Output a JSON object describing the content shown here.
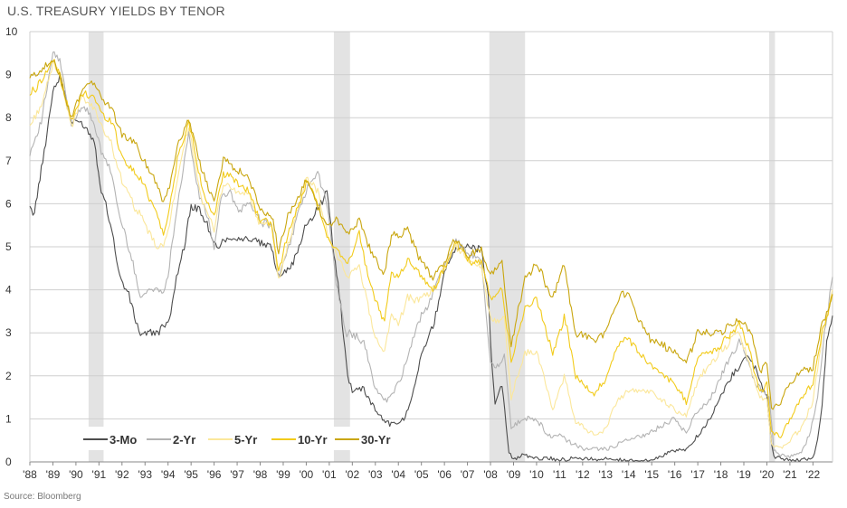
{
  "chart_data": {
    "type": "line",
    "title": "U.S. TREASURY YIELDS BY TENOR",
    "source": "Source: Bloomberg",
    "xlabel": "",
    "ylabel": "",
    "ylim": [
      0,
      10
    ],
    "yticks": [
      0,
      1,
      2,
      3,
      4,
      5,
      6,
      7,
      8,
      9,
      10
    ],
    "xlim": [
      1988.0,
      2022.85
    ],
    "xticks": [
      {
        "value": 1988,
        "label": "'88"
      },
      {
        "value": 1989,
        "label": "'89"
      },
      {
        "value": 1990,
        "label": "'90"
      },
      {
        "value": 1991,
        "label": "'91"
      },
      {
        "value": 1992,
        "label": "'92"
      },
      {
        "value": 1993,
        "label": "'93"
      },
      {
        "value": 1994,
        "label": "'94"
      },
      {
        "value": 1995,
        "label": "'95"
      },
      {
        "value": 1996,
        "label": "'96"
      },
      {
        "value": 1997,
        "label": "'97"
      },
      {
        "value": 1998,
        "label": "'98"
      },
      {
        "value": 1999,
        "label": "'99"
      },
      {
        "value": 2000,
        "label": "'00"
      },
      {
        "value": 2001,
        "label": "'01"
      },
      {
        "value": 2002,
        "label": "'02"
      },
      {
        "value": 2003,
        "label": "'03"
      },
      {
        "value": 2004,
        "label": "'04"
      },
      {
        "value": 2005,
        "label": "'05"
      },
      {
        "value": 2006,
        "label": "'06"
      },
      {
        "value": 2007,
        "label": "'07"
      },
      {
        "value": 2008,
        "label": "'08"
      },
      {
        "value": 2009,
        "label": "'09"
      },
      {
        "value": 2010,
        "label": "'10"
      },
      {
        "value": 2011,
        "label": "'11"
      },
      {
        "value": 2012,
        "label": "'12"
      },
      {
        "value": 2013,
        "label": "'13"
      },
      {
        "value": 2014,
        "label": "'14"
      },
      {
        "value": 2015,
        "label": "'15"
      },
      {
        "value": 2016,
        "label": "'16"
      },
      {
        "value": 2017,
        "label": "'17"
      },
      {
        "value": 2018,
        "label": "'18"
      },
      {
        "value": 2019,
        "label": "'19"
      },
      {
        "value": 2020,
        "label": "'20"
      },
      {
        "value": 2021,
        "label": "'21"
      },
      {
        "value": 2022,
        "label": "'22"
      }
    ],
    "recessions": [
      [
        1990.55,
        1991.2
      ],
      [
        2001.2,
        2001.9
      ],
      [
        2007.95,
        2009.5
      ],
      [
        2020.1,
        2020.35
      ]
    ],
    "grid": true,
    "legend": "bottom-left",
    "series": [
      {
        "name": "3-Mo",
        "color": "#4d4d4d",
        "x": [
          1988.0,
          1988.2,
          1988.5,
          1989.0,
          1989.3,
          1989.8,
          1990.3,
          1990.8,
          1991.1,
          1991.5,
          1991.9,
          1992.3,
          1992.6,
          1992.8,
          1993.0,
          1993.3,
          1993.8,
          1994.0,
          1994.3,
          1994.7,
          1995.0,
          1995.3,
          1995.7,
          1996.0,
          1996.3,
          1996.7,
          1997.0,
          1997.5,
          1998.0,
          1998.5,
          1998.8,
          1999.0,
          1999.5,
          2000.0,
          2000.5,
          2000.9,
          2001.2,
          2001.5,
          2001.8,
          2002.0,
          2002.5,
          2003.0,
          2003.5,
          2004.0,
          2004.3,
          2004.6,
          2005.0,
          2005.5,
          2006.0,
          2006.5,
          2007.0,
          2007.6,
          2007.9,
          2008.0,
          2008.2,
          2008.5,
          2008.8,
          2009.0,
          2009.5,
          2010.0,
          2011.0,
          2012.0,
          2013.0,
          2014.0,
          2015.0,
          2015.9,
          2016.5,
          2017.0,
          2017.5,
          2018.0,
          2018.5,
          2019.0,
          2019.3,
          2019.7,
          2020.0,
          2020.2,
          2020.3,
          2020.5,
          2021.0,
          2021.5,
          2022.0,
          2022.2,
          2022.4,
          2022.6,
          2022.85
        ],
        "values": [
          5.9,
          5.8,
          6.8,
          8.6,
          9.0,
          7.9,
          7.9,
          7.5,
          6.3,
          5.6,
          4.3,
          3.9,
          3.3,
          3.0,
          3.0,
          3.0,
          3.1,
          3.2,
          4.1,
          5.0,
          5.9,
          5.9,
          5.5,
          5.0,
          5.1,
          5.2,
          5.2,
          5.2,
          5.1,
          5.0,
          4.3,
          4.4,
          4.7,
          5.5,
          5.9,
          6.3,
          4.9,
          3.6,
          2.0,
          1.7,
          1.7,
          1.2,
          0.9,
          0.9,
          1.0,
          1.6,
          2.5,
          3.1,
          4.4,
          5.0,
          5.0,
          4.9,
          3.9,
          2.8,
          1.3,
          1.8,
          0.2,
          0.1,
          0.15,
          0.1,
          0.05,
          0.08,
          0.05,
          0.03,
          0.02,
          0.25,
          0.3,
          0.6,
          1.0,
          1.5,
          2.0,
          2.4,
          2.4,
          1.9,
          1.5,
          0.4,
          0.1,
          0.1,
          0.05,
          0.05,
          0.1,
          0.5,
          1.3,
          2.8,
          3.4
        ]
      },
      {
        "name": "2-Yr",
        "color": "#b3b3b3",
        "x": [
          1988.0,
          1988.5,
          1989.0,
          1989.3,
          1989.8,
          1990.3,
          1990.8,
          1991.1,
          1991.5,
          1991.9,
          1992.3,
          1992.6,
          1992.8,
          1993.3,
          1993.8,
          1994.0,
          1994.3,
          1994.9,
          1995.3,
          1995.7,
          1996.0,
          1996.3,
          1996.7,
          1997.0,
          1997.5,
          1998.0,
          1998.5,
          1998.8,
          1999.0,
          1999.5,
          2000.0,
          2000.5,
          2000.9,
          2001.3,
          2001.7,
          2002.0,
          2002.5,
          2003.0,
          2003.5,
          2004.0,
          2004.5,
          2005.0,
          2005.5,
          2006.0,
          2006.5,
          2007.0,
          2007.6,
          2008.0,
          2008.3,
          2008.6,
          2008.9,
          2009.5,
          2010.0,
          2010.5,
          2011.0,
          2012.0,
          2013.0,
          2014.0,
          2015.0,
          2016.0,
          2016.5,
          2017.0,
          2017.5,
          2018.0,
          2018.8,
          2019.0,
          2019.5,
          2019.9,
          2020.1,
          2020.3,
          2020.6,
          2021.0,
          2021.5,
          2021.9,
          2022.2,
          2022.5,
          2022.85
        ],
        "values": [
          7.2,
          7.9,
          9.5,
          9.3,
          7.8,
          8.3,
          7.9,
          7.2,
          6.8,
          5.7,
          5.0,
          4.3,
          3.9,
          4.0,
          4.0,
          4.3,
          5.6,
          7.6,
          6.3,
          5.7,
          5.0,
          6.1,
          6.3,
          5.8,
          6.0,
          5.6,
          5.5,
          4.3,
          4.6,
          5.5,
          6.3,
          6.7,
          6.0,
          4.2,
          3.0,
          3.0,
          2.8,
          1.7,
          1.4,
          1.8,
          2.6,
          3.4,
          3.9,
          4.6,
          5.1,
          4.9,
          4.7,
          2.3,
          2.2,
          2.5,
          0.8,
          1.0,
          1.0,
          0.6,
          0.6,
          0.3,
          0.3,
          0.5,
          0.7,
          1.0,
          0.7,
          1.2,
          1.4,
          2.0,
          2.8,
          2.6,
          1.8,
          1.6,
          1.5,
          0.3,
          0.15,
          0.12,
          0.2,
          0.7,
          1.5,
          3.0,
          4.3
        ]
      },
      {
        "name": "5-Yr",
        "color": "#fbe79b",
        "x": [
          1988.0,
          1988.5,
          1989.0,
          1989.3,
          1989.8,
          1990.3,
          1990.8,
          1991.2,
          1991.6,
          1992.0,
          1992.5,
          1993.0,
          1993.5,
          1993.8,
          1994.0,
          1994.4,
          1994.9,
          1995.5,
          1996.0,
          1996.4,
          1997.0,
          1997.5,
          1998.0,
          1998.5,
          1998.8,
          1999.2,
          1999.7,
          2000.0,
          2000.5,
          2000.9,
          2001.3,
          2001.8,
          2002.3,
          2002.8,
          2003.0,
          2003.4,
          2003.7,
          2004.0,
          2004.4,
          2005.0,
          2005.5,
          2006.0,
          2006.5,
          2007.0,
          2007.6,
          2008.0,
          2008.3,
          2008.6,
          2008.9,
          2009.5,
          2010.0,
          2010.7,
          2011.2,
          2011.7,
          2012.3,
          2012.6,
          2013.0,
          2013.5,
          2014.0,
          2015.0,
          2016.0,
          2016.5,
          2017.0,
          2018.0,
          2018.8,
          2019.3,
          2019.7,
          2020.0,
          2020.2,
          2020.6,
          2021.0,
          2021.5,
          2022.0,
          2022.4,
          2022.85
        ],
        "values": [
          7.8,
          8.3,
          9.2,
          9.1,
          7.8,
          8.5,
          8.2,
          7.7,
          7.3,
          6.5,
          6.0,
          5.5,
          5.0,
          5.0,
          5.4,
          6.5,
          7.8,
          6.0,
          5.4,
          6.5,
          6.3,
          6.2,
          5.5,
          5.5,
          4.2,
          5.0,
          6.0,
          6.6,
          6.3,
          5.3,
          4.8,
          4.3,
          4.6,
          3.3,
          2.9,
          2.6,
          3.4,
          3.2,
          3.8,
          3.8,
          4.0,
          4.5,
          5.0,
          4.7,
          4.5,
          3.3,
          3.3,
          3.4,
          1.5,
          2.5,
          2.6,
          1.2,
          2.0,
          0.9,
          0.7,
          0.6,
          0.8,
          1.4,
          1.7,
          1.6,
          1.2,
          1.1,
          1.9,
          2.6,
          3.0,
          2.2,
          1.5,
          1.4,
          0.4,
          0.3,
          0.5,
          0.8,
          1.4,
          2.9,
          4.0
        ]
      },
      {
        "name": "10-Yr",
        "color": "#f2cb1b",
        "x": [
          1988.0,
          1988.5,
          1989.0,
          1989.3,
          1989.8,
          1990.3,
          1990.8,
          1991.2,
          1991.6,
          1992.0,
          1992.5,
          1993.0,
          1993.5,
          1993.8,
          1994.0,
          1994.4,
          1994.9,
          1995.5,
          1996.0,
          1996.4,
          1997.0,
          1997.5,
          1998.0,
          1998.5,
          1998.8,
          1999.2,
          1999.7,
          2000.0,
          2000.5,
          2000.9,
          2001.3,
          2001.8,
          2002.3,
          2002.8,
          2003.4,
          2003.7,
          2004.0,
          2004.4,
          2005.0,
          2005.5,
          2006.0,
          2006.5,
          2007.0,
          2007.6,
          2008.0,
          2008.5,
          2008.9,
          2009.5,
          2010.0,
          2010.7,
          2011.2,
          2011.7,
          2012.5,
          2013.0,
          2013.7,
          2014.0,
          2015.0,
          2016.0,
          2016.5,
          2017.0,
          2018.0,
          2018.8,
          2019.3,
          2019.7,
          2020.0,
          2020.2,
          2020.6,
          2021.0,
          2021.5,
          2022.0,
          2022.4,
          2022.85
        ],
        "values": [
          8.5,
          8.9,
          9.3,
          9.0,
          7.9,
          8.6,
          8.5,
          8.0,
          7.9,
          7.1,
          6.8,
          6.4,
          5.8,
          5.3,
          5.7,
          7.0,
          7.9,
          6.3,
          5.7,
          6.7,
          6.5,
          6.3,
          5.6,
          5.5,
          4.4,
          5.3,
          6.0,
          6.5,
          6.0,
          5.2,
          5.0,
          4.6,
          5.3,
          4.0,
          3.3,
          4.4,
          4.3,
          4.7,
          4.3,
          4.0,
          4.5,
          5.1,
          4.7,
          4.6,
          3.8,
          4.0,
          2.3,
          3.6,
          3.8,
          2.5,
          3.4,
          2.0,
          1.6,
          1.9,
          2.9,
          2.8,
          2.2,
          1.8,
          1.4,
          2.4,
          2.7,
          3.2,
          2.5,
          1.6,
          1.8,
          0.7,
          0.6,
          1.0,
          1.5,
          1.8,
          3.0,
          3.9
        ]
      },
      {
        "name": "30-Yr",
        "color": "#c9a60f",
        "x": [
          1988.0,
          1988.5,
          1989.0,
          1989.3,
          1989.8,
          1990.3,
          1990.8,
          1991.2,
          1991.6,
          1992.0,
          1992.5,
          1993.0,
          1993.5,
          1993.8,
          1994.0,
          1994.4,
          1994.9,
          1995.5,
          1996.0,
          1996.4,
          1997.0,
          1997.5,
          1998.0,
          1998.5,
          1998.8,
          1999.2,
          1999.7,
          2000.0,
          2000.5,
          2000.9,
          2001.3,
          2001.8,
          2002.3,
          2002.8,
          2003.4,
          2003.7,
          2004.0,
          2004.4,
          2005.0,
          2005.5,
          2006.0,
          2006.5,
          2007.0,
          2007.6,
          2008.0,
          2008.5,
          2008.9,
          2009.5,
          2010.0,
          2010.7,
          2011.2,
          2011.7,
          2012.5,
          2013.0,
          2013.7,
          2014.0,
          2015.0,
          2016.0,
          2016.5,
          2017.0,
          2018.0,
          2018.8,
          2019.3,
          2019.7,
          2020.0,
          2020.2,
          2020.6,
          2021.0,
          2021.5,
          2022.0,
          2022.4,
          2022.85
        ],
        "values": [
          8.9,
          9.1,
          9.3,
          9.0,
          8.0,
          8.7,
          8.8,
          8.4,
          8.2,
          7.6,
          7.4,
          7.0,
          6.5,
          6.0,
          6.3,
          7.3,
          8.0,
          6.7,
          6.1,
          7.0,
          6.8,
          6.6,
          5.9,
          5.7,
          4.9,
          5.7,
          6.2,
          6.6,
          5.9,
          5.5,
          5.6,
          5.3,
          5.6,
          4.9,
          4.4,
          5.3,
          5.2,
          5.4,
          4.6,
          4.3,
          4.6,
          5.2,
          4.8,
          4.9,
          4.4,
          4.6,
          2.7,
          4.3,
          4.6,
          3.8,
          4.6,
          3.0,
          2.8,
          3.0,
          3.9,
          3.8,
          2.8,
          2.6,
          2.3,
          3.0,
          3.0,
          3.3,
          3.0,
          2.1,
          2.3,
          1.2,
          1.4,
          1.8,
          2.1,
          2.2,
          3.2,
          3.9
        ]
      }
    ]
  }
}
